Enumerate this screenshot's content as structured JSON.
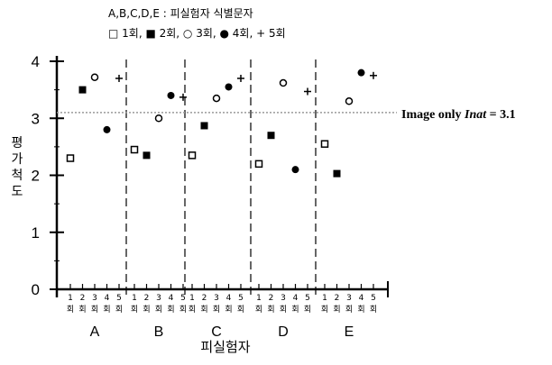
{
  "chart_data": {
    "type": "scatter",
    "legend_title": "A,B,C,D,E : 피실험자 식별문자",
    "legend_line": "□ 1회, ■ 2회, ○ 3회, ● 4회, + 5회",
    "xlabel": "피실험자",
    "ylabel": "평가척도",
    "ylim": [
      0,
      4
    ],
    "yticks": [
      "0",
      "1",
      "2",
      "3",
      "4"
    ],
    "subjects": [
      "A",
      "B",
      "C",
      "D",
      "E"
    ],
    "trial_numbers": [
      "1",
      "2",
      "3",
      "4",
      "5"
    ],
    "trial_suffix": "회",
    "series": [
      {
        "marker": "open-square",
        "values": [
          2.3,
          2.45,
          2.35,
          2.2,
          2.55
        ]
      },
      {
        "marker": "filled-square",
        "values": [
          3.5,
          2.35,
          2.87,
          2.7,
          2.03
        ]
      },
      {
        "marker": "open-circle",
        "values": [
          3.72,
          3.0,
          3.35,
          3.62,
          3.3
        ]
      },
      {
        "marker": "filled-circle",
        "values": [
          2.8,
          3.4,
          3.55,
          2.1,
          3.8
        ]
      },
      {
        "marker": "plus",
        "values": [
          3.7,
          3.37,
          3.7,
          3.47,
          3.75
        ]
      }
    ],
    "reference_line": {
      "value": 3.1,
      "label": "Image only ",
      "label_italic": "Inat",
      "label_suffix": " = 3.1"
    },
    "grid": false,
    "dividers": "dashed vertical lines between subjects"
  }
}
